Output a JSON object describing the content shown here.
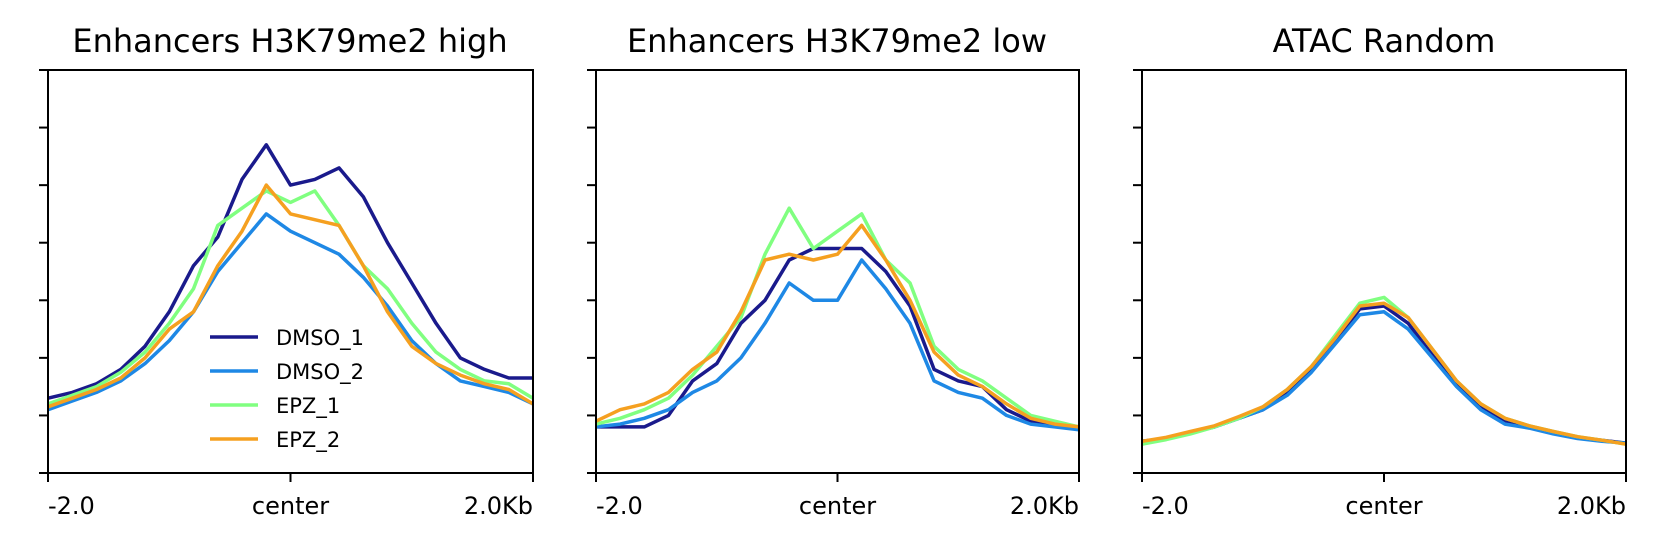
{
  "chart_data": [
    {
      "type": "line",
      "title": "Enhancers H3K79me2 high",
      "xlabel": "",
      "ylabel": "",
      "x_tick_labels": [
        "-2.0",
        "center",
        "2.0Kb"
      ],
      "x_ticks": [
        -2.0,
        0.0,
        2.0
      ],
      "xlim": [
        -2.0,
        2.0
      ],
      "ylim": [
        0,
        7
      ],
      "y_ticks": [
        0,
        1,
        2,
        3,
        4,
        5,
        6,
        7
      ],
      "legend": {
        "location": "lower-left",
        "entries": [
          "DMSO_1",
          "DMSO_2",
          "EPZ_1",
          "EPZ_2"
        ]
      },
      "series": [
        {
          "name": "DMSO_1",
          "color": "#1a1a8c",
          "x": [
            -2.0,
            -1.8,
            -1.6,
            -1.4,
            -1.2,
            -1.0,
            -0.8,
            -0.6,
            -0.4,
            -0.2,
            0.0,
            0.2,
            0.4,
            0.6,
            0.8,
            1.0,
            1.2,
            1.4,
            1.6,
            1.8,
            2.0
          ],
          "y": [
            1.3,
            1.4,
            1.55,
            1.8,
            2.2,
            2.8,
            3.6,
            4.1,
            5.1,
            5.7,
            5.0,
            5.1,
            5.3,
            4.8,
            4.0,
            3.3,
            2.6,
            2.0,
            1.8,
            1.65,
            1.65
          ]
        },
        {
          "name": "DMSO_2",
          "color": "#1e88e5",
          "x": [
            -2.0,
            -1.8,
            -1.6,
            -1.4,
            -1.2,
            -1.0,
            -0.8,
            -0.6,
            -0.4,
            -0.2,
            0.0,
            0.2,
            0.4,
            0.6,
            0.8,
            1.0,
            1.2,
            1.4,
            1.6,
            1.8,
            2.0
          ],
          "y": [
            1.1,
            1.25,
            1.4,
            1.6,
            1.9,
            2.3,
            2.8,
            3.5,
            4.0,
            4.5,
            4.2,
            4.0,
            3.8,
            3.4,
            2.9,
            2.3,
            1.9,
            1.6,
            1.5,
            1.4,
            1.2
          ]
        },
        {
          "name": "EPZ_1",
          "color": "#80ff80",
          "x": [
            -2.0,
            -1.8,
            -1.6,
            -1.4,
            -1.2,
            -1.0,
            -0.8,
            -0.6,
            -0.4,
            -0.2,
            0.0,
            0.2,
            0.4,
            0.6,
            0.8,
            1.0,
            1.2,
            1.4,
            1.6,
            1.8,
            2.0
          ],
          "y": [
            1.2,
            1.35,
            1.5,
            1.75,
            2.1,
            2.6,
            3.2,
            4.3,
            4.6,
            4.9,
            4.7,
            4.9,
            4.3,
            3.6,
            3.2,
            2.6,
            2.1,
            1.8,
            1.6,
            1.55,
            1.3
          ]
        },
        {
          "name": "EPZ_2",
          "color": "#f5a020",
          "x": [
            -2.0,
            -1.8,
            -1.6,
            -1.4,
            -1.2,
            -1.0,
            -0.8,
            -0.6,
            -0.4,
            -0.2,
            0.0,
            0.2,
            0.4,
            0.6,
            0.8,
            1.0,
            1.2,
            1.4,
            1.6,
            1.8,
            2.0
          ],
          "y": [
            1.15,
            1.3,
            1.45,
            1.65,
            2.0,
            2.5,
            2.8,
            3.6,
            4.2,
            5.0,
            4.5,
            4.4,
            4.3,
            3.6,
            2.8,
            2.2,
            1.9,
            1.7,
            1.55,
            1.45,
            1.2
          ]
        }
      ]
    },
    {
      "type": "line",
      "title": "Enhancers H3K79me2 low",
      "xlabel": "",
      "ylabel": "",
      "x_tick_labels": [
        "-2.0",
        "center",
        "2.0Kb"
      ],
      "x_ticks": [
        -2.0,
        0.0,
        2.0
      ],
      "xlim": [
        -2.0,
        2.0
      ],
      "ylim": [
        0,
        7
      ],
      "y_ticks": [
        0,
        1,
        2,
        3,
        4,
        5,
        6,
        7
      ],
      "series": [
        {
          "name": "DMSO_1",
          "color": "#1a1a8c",
          "x": [
            -2.0,
            -1.8,
            -1.6,
            -1.4,
            -1.2,
            -1.0,
            -0.8,
            -0.6,
            -0.4,
            -0.2,
            0.0,
            0.2,
            0.4,
            0.6,
            0.8,
            1.0,
            1.2,
            1.4,
            1.6,
            1.8,
            2.0
          ],
          "y": [
            0.8,
            0.8,
            0.8,
            1.0,
            1.6,
            1.9,
            2.6,
            3.0,
            3.7,
            3.9,
            3.9,
            3.9,
            3.5,
            2.9,
            1.8,
            1.6,
            1.5,
            1.1,
            0.9,
            0.85,
            0.8
          ]
        },
        {
          "name": "DMSO_2",
          "color": "#1e88e5",
          "x": [
            -2.0,
            -1.8,
            -1.6,
            -1.4,
            -1.2,
            -1.0,
            -0.8,
            -0.6,
            -0.4,
            -0.2,
            0.0,
            0.2,
            0.4,
            0.6,
            0.8,
            1.0,
            1.2,
            1.4,
            1.6,
            1.8,
            2.0
          ],
          "y": [
            0.8,
            0.85,
            0.95,
            1.1,
            1.4,
            1.6,
            2.0,
            2.6,
            3.3,
            3.0,
            3.0,
            3.7,
            3.2,
            2.6,
            1.6,
            1.4,
            1.3,
            1.0,
            0.85,
            0.8,
            0.75
          ]
        },
        {
          "name": "EPZ_1",
          "color": "#80ff80",
          "x": [
            -2.0,
            -1.8,
            -1.6,
            -1.4,
            -1.2,
            -1.0,
            -0.8,
            -0.6,
            -0.4,
            -0.2,
            0.0,
            0.2,
            0.4,
            0.6,
            0.8,
            1.0,
            1.2,
            1.4,
            1.6,
            1.8,
            2.0
          ],
          "y": [
            0.85,
            0.95,
            1.1,
            1.3,
            1.7,
            2.2,
            2.7,
            3.8,
            4.6,
            3.9,
            4.2,
            4.5,
            3.7,
            3.3,
            2.2,
            1.8,
            1.6,
            1.3,
            1.0,
            0.9,
            0.8
          ]
        },
        {
          "name": "EPZ_2",
          "color": "#f5a020",
          "x": [
            -2.0,
            -1.8,
            -1.6,
            -1.4,
            -1.2,
            -1.0,
            -0.8,
            -0.6,
            -0.4,
            -0.2,
            0.0,
            0.2,
            0.4,
            0.6,
            0.8,
            1.0,
            1.2,
            1.4,
            1.6,
            1.8,
            2.0
          ],
          "y": [
            0.9,
            1.1,
            1.2,
            1.4,
            1.8,
            2.1,
            2.8,
            3.7,
            3.8,
            3.7,
            3.8,
            4.3,
            3.7,
            3.0,
            2.1,
            1.7,
            1.5,
            1.2,
            0.95,
            0.85,
            0.8
          ]
        }
      ]
    },
    {
      "type": "line",
      "title": "ATAC Random",
      "xlabel": "",
      "ylabel": "",
      "x_tick_labels": [
        "-2.0",
        "center",
        "2.0Kb"
      ],
      "x_ticks": [
        -2.0,
        0.0,
        2.0
      ],
      "xlim": [
        -2.0,
        2.0
      ],
      "ylim": [
        0,
        7
      ],
      "y_ticks": [
        0,
        1,
        2,
        3,
        4,
        5,
        6,
        7
      ],
      "series": [
        {
          "name": "DMSO_1",
          "color": "#1a1a8c",
          "x": [
            -2.0,
            -1.8,
            -1.6,
            -1.4,
            -1.2,
            -1.0,
            -0.8,
            -0.6,
            -0.4,
            -0.2,
            0.0,
            0.2,
            0.4,
            0.6,
            0.8,
            1.0,
            1.2,
            1.4,
            1.6,
            1.8,
            2.0
          ],
          "y": [
            0.55,
            0.6,
            0.7,
            0.8,
            0.95,
            1.1,
            1.4,
            1.8,
            2.3,
            2.85,
            2.9,
            2.6,
            2.05,
            1.55,
            1.15,
            0.9,
            0.8,
            0.7,
            0.62,
            0.57,
            0.52
          ]
        },
        {
          "name": "DMSO_2",
          "color": "#1e88e5",
          "x": [
            -2.0,
            -1.8,
            -1.6,
            -1.4,
            -1.2,
            -1.0,
            -0.8,
            -0.6,
            -0.4,
            -0.2,
            0.0,
            0.2,
            0.4,
            0.6,
            0.8,
            1.0,
            1.2,
            1.4,
            1.6,
            1.8,
            2.0
          ],
          "y": [
            0.55,
            0.6,
            0.7,
            0.8,
            0.95,
            1.1,
            1.35,
            1.75,
            2.25,
            2.75,
            2.8,
            2.5,
            2.0,
            1.5,
            1.1,
            0.85,
            0.78,
            0.68,
            0.6,
            0.55,
            0.52
          ]
        },
        {
          "name": "EPZ_1",
          "color": "#80ff80",
          "x": [
            -2.0,
            -1.8,
            -1.6,
            -1.4,
            -1.2,
            -1.0,
            -0.8,
            -0.6,
            -0.4,
            -0.2,
            0.0,
            0.2,
            0.4,
            0.6,
            0.8,
            1.0,
            1.2,
            1.4,
            1.6,
            1.8,
            2.0
          ],
          "y": [
            0.5,
            0.58,
            0.68,
            0.8,
            0.95,
            1.15,
            1.45,
            1.85,
            2.4,
            2.95,
            3.05,
            2.7,
            2.15,
            1.6,
            1.2,
            0.95,
            0.82,
            0.72,
            0.63,
            0.57,
            0.5
          ]
        },
        {
          "name": "EPZ_2",
          "color": "#f5a020",
          "x": [
            -2.0,
            -1.8,
            -1.6,
            -1.4,
            -1.2,
            -1.0,
            -0.8,
            -0.6,
            -0.4,
            -0.2,
            0.0,
            0.2,
            0.4,
            0.6,
            0.8,
            1.0,
            1.2,
            1.4,
            1.6,
            1.8,
            2.0
          ],
          "y": [
            0.55,
            0.62,
            0.72,
            0.82,
            0.98,
            1.15,
            1.45,
            1.85,
            2.35,
            2.9,
            2.95,
            2.7,
            2.15,
            1.6,
            1.2,
            0.95,
            0.82,
            0.72,
            0.63,
            0.57,
            0.5
          ]
        }
      ]
    }
  ]
}
